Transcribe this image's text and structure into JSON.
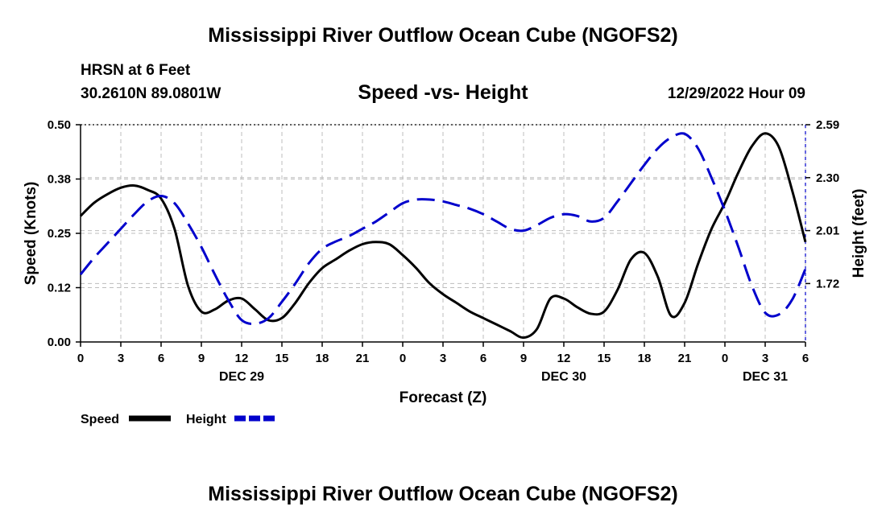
{
  "page": {
    "title_top": "Mississippi River Outflow Ocean Cube (NGOFS2)",
    "title_bottom": "Mississippi River Outflow Ocean Cube (NGOFS2)",
    "station": "HRSN at 6 Feet",
    "coords": "30.2610N  89.0801W",
    "subtitle": "Speed -vs- Height",
    "datetime": "12/29/2022 Hour 09"
  },
  "chart_data": {
    "type": "line",
    "title": "Speed -vs- Height",
    "xlabel": "Forecast (Z)",
    "ylabel_left": "Speed (Knots)",
    "ylabel_right": "Height (feet)",
    "x_range": [
      0,
      54
    ],
    "ylim_left": [
      0,
      0.5
    ],
    "ylim_right": [
      1.4,
      2.59
    ],
    "x_ticks": [
      {
        "x": 0,
        "label": "0"
      },
      {
        "x": 3,
        "label": "3"
      },
      {
        "x": 6,
        "label": "6"
      },
      {
        "x": 9,
        "label": "9"
      },
      {
        "x": 12,
        "label": "12"
      },
      {
        "x": 15,
        "label": "15"
      },
      {
        "x": 18,
        "label": "18"
      },
      {
        "x": 21,
        "label": "21"
      },
      {
        "x": 24,
        "label": "0"
      },
      {
        "x": 27,
        "label": "3"
      },
      {
        "x": 30,
        "label": "6"
      },
      {
        "x": 33,
        "label": "9"
      },
      {
        "x": 36,
        "label": "12"
      },
      {
        "x": 39,
        "label": "15"
      },
      {
        "x": 42,
        "label": "18"
      },
      {
        "x": 45,
        "label": "21"
      },
      {
        "x": 48,
        "label": "0"
      },
      {
        "x": 51,
        "label": "3"
      },
      {
        "x": 54,
        "label": "6"
      }
    ],
    "day_labels": [
      {
        "x": 12,
        "label": "DEC 29"
      },
      {
        "x": 36,
        "label": "DEC 30"
      },
      {
        "x": 51,
        "label": "DEC 31"
      }
    ],
    "left_ticks": [
      {
        "value": 0.0,
        "label": "0.00"
      },
      {
        "value": 0.125,
        "label": "0.12"
      },
      {
        "value": 0.25,
        "label": "0.25"
      },
      {
        "value": 0.375,
        "label": "0.38"
      },
      {
        "value": 0.5,
        "label": "0.50"
      }
    ],
    "right_ticks": [
      {
        "value": 1.72,
        "label": "1.72"
      },
      {
        "value": 2.01,
        "label": "2.01"
      },
      {
        "value": 2.3,
        "label": "2.30"
      },
      {
        "value": 2.59,
        "label": "2.59"
      }
    ],
    "series": [
      {
        "name": "Speed",
        "legend": "Speed",
        "axis": "left",
        "color": "#000000",
        "style": "solid",
        "x": [
          0,
          1,
          2,
          3,
          4,
          5,
          6,
          7,
          8,
          9,
          10,
          11,
          12,
          13,
          14,
          15,
          16,
          17,
          18,
          19,
          20,
          21,
          22,
          23,
          24,
          25,
          26,
          27,
          28,
          29,
          30,
          31,
          32,
          33,
          34,
          35,
          36,
          37,
          38,
          39,
          40,
          41,
          42,
          43,
          44,
          45,
          46,
          47,
          48,
          49,
          50,
          51,
          52,
          53,
          54
        ],
        "values": [
          0.29,
          0.32,
          0.34,
          0.355,
          0.36,
          0.35,
          0.33,
          0.26,
          0.13,
          0.07,
          0.075,
          0.095,
          0.1,
          0.075,
          0.05,
          0.055,
          0.09,
          0.135,
          0.17,
          0.19,
          0.21,
          0.225,
          0.23,
          0.225,
          0.2,
          0.17,
          0.135,
          0.11,
          0.09,
          0.07,
          0.055,
          0.04,
          0.025,
          0.01,
          0.03,
          0.1,
          0.1,
          0.08,
          0.065,
          0.07,
          0.12,
          0.19,
          0.205,
          0.15,
          0.06,
          0.09,
          0.18,
          0.26,
          0.32,
          0.39,
          0.45,
          0.48,
          0.45,
          0.35,
          0.23
        ]
      },
      {
        "name": "Height",
        "legend": "Height",
        "axis": "right",
        "color": "#0000cc",
        "style": "dashed",
        "x": [
          0,
          1,
          2,
          3,
          4,
          5,
          6,
          7,
          8,
          9,
          10,
          11,
          12,
          13,
          14,
          15,
          16,
          17,
          18,
          19,
          20,
          21,
          22,
          23,
          24,
          25,
          26,
          27,
          28,
          29,
          30,
          31,
          32,
          33,
          34,
          35,
          36,
          37,
          38,
          39,
          40,
          41,
          42,
          43,
          44,
          45,
          46,
          47,
          48,
          49,
          50,
          51,
          52,
          53,
          54
        ],
        "values": [
          1.77,
          1.86,
          1.94,
          2.02,
          2.1,
          2.17,
          2.2,
          2.16,
          2.05,
          1.92,
          1.77,
          1.63,
          1.52,
          1.5,
          1.53,
          1.62,
          1.72,
          1.83,
          1.91,
          1.95,
          1.98,
          2.02,
          2.06,
          2.11,
          2.16,
          2.18,
          2.18,
          2.17,
          2.15,
          2.13,
          2.1,
          2.06,
          2.02,
          2.01,
          2.04,
          2.08,
          2.1,
          2.09,
          2.06,
          2.08,
          2.17,
          2.27,
          2.37,
          2.46,
          2.52,
          2.54,
          2.46,
          2.3,
          2.12,
          1.92,
          1.71,
          1.56,
          1.55,
          1.63,
          1.8
        ]
      }
    ]
  }
}
